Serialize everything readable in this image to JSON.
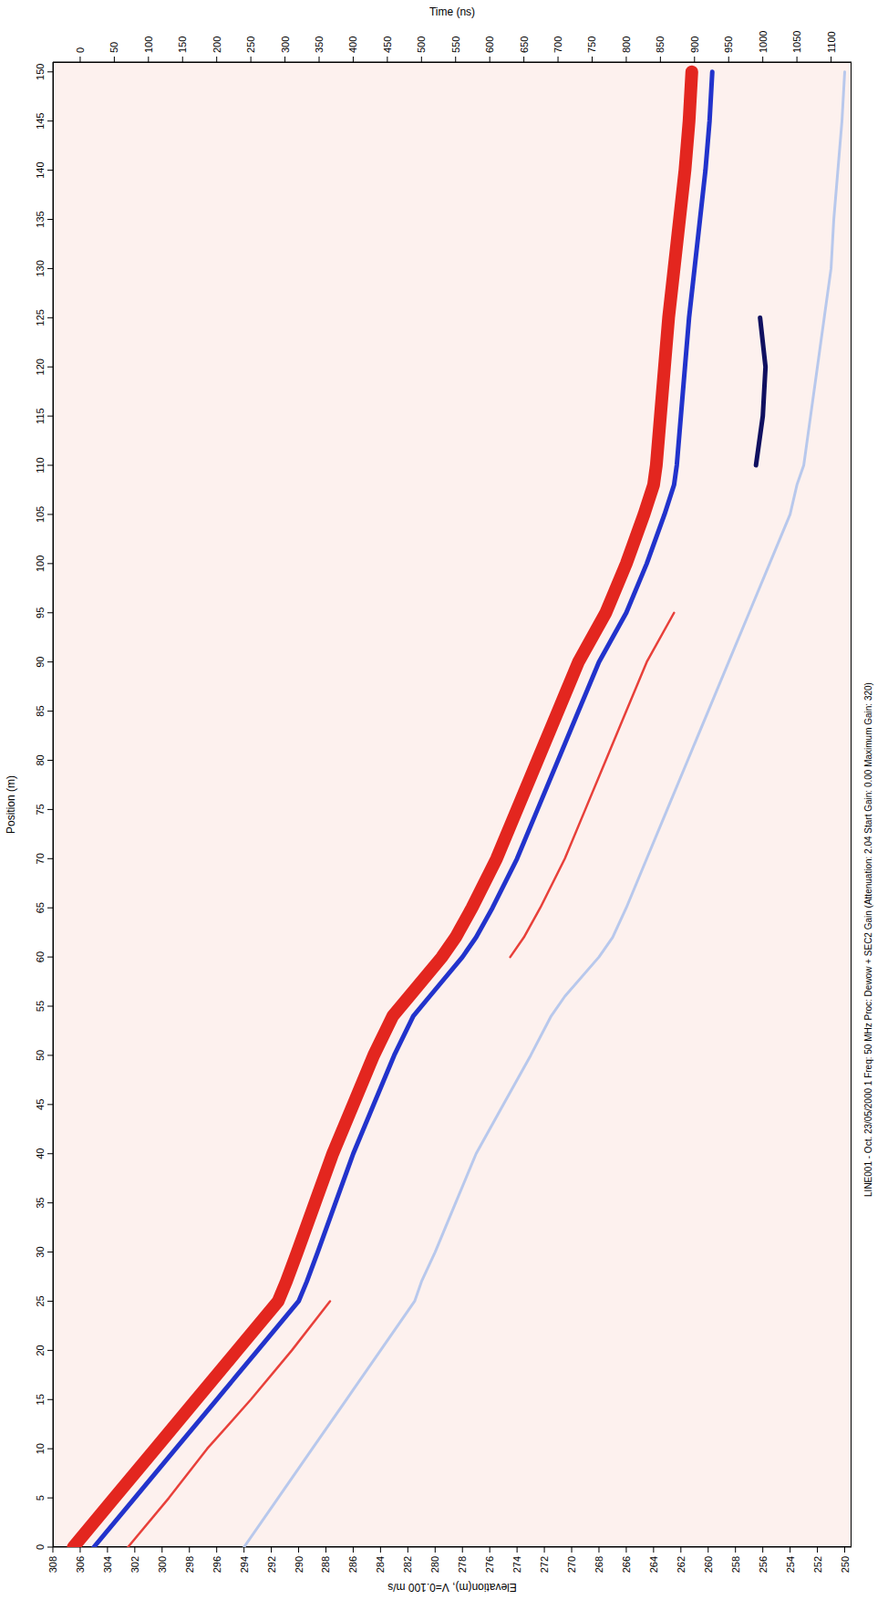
{
  "chart_data": {
    "type": "line",
    "x_label": "Position (m)",
    "y_label": "Elevation(m), V=0.100 m/s",
    "annotations": [
      "LINE001 - Oct. 23/05/2000 1 Freq: 50 MHz Proc: Dewow + SEC2 Gain (Attenuation: 2.04 Start Gain: 0.00 Maximum Gain: 320)"
    ],
    "x": [
      0,
      5,
      10,
      15,
      20,
      25,
      27,
      30,
      35,
      40,
      45,
      50,
      54,
      56,
      60,
      62,
      65,
      70,
      75,
      80,
      85,
      90,
      95,
      100,
      105,
      108,
      110,
      115,
      120,
      125,
      130,
      135,
      140,
      145,
      150
    ],
    "xlim": [
      0,
      151
    ],
    "xticks": [
      0,
      5,
      10,
      15,
      20,
      25,
      30,
      35,
      40,
      45,
      50,
      55,
      60,
      65,
      70,
      75,
      80,
      85,
      90,
      95,
      100,
      105,
      110,
      115,
      120,
      125,
      130,
      135,
      140,
      145,
      150
    ],
    "ylim": [
      308,
      249.5
    ],
    "yticks": [
      308,
      306,
      304,
      302,
      300,
      298,
      296,
      294,
      292,
      290,
      288,
      286,
      284,
      282,
      280,
      278,
      276,
      274,
      272,
      270,
      268,
      266,
      264,
      262,
      260,
      258,
      256,
      254,
      252,
      250
    ],
    "time_axis": {
      "label": "Time (ns)",
      "lim": [
        -40,
        1130
      ],
      "ticks": [
        0,
        50,
        100,
        150,
        200,
        250,
        300,
        350,
        400,
        450,
        500,
        550,
        600,
        650,
        700,
        750,
        800,
        850,
        900,
        950,
        1000,
        1050,
        1100
      ]
    },
    "grid": false,
    "tick_labels": true,
    "series": [
      {
        "color": "#b8c8ec",
        "values": [
          294,
          291.5,
          289,
          286.5,
          284,
          281.5,
          281,
          280,
          278.5,
          277,
          275,
          273,
          271.5,
          270.5,
          268,
          267,
          266,
          264.5,
          263,
          261.5,
          260,
          258.5,
          257,
          255.5,
          254,
          253.5,
          253,
          252.5,
          252,
          251.5,
          251,
          250.8,
          250.5,
          250.2,
          250
        ]
      },
      {
        "color": "#e8403a",
        "values": [
          302.5,
          299.5,
          296.7,
          293.5,
          290.5,
          287.7,
          null,
          null,
          null,
          null,
          null,
          null,
          null,
          null,
          null,
          null,
          null,
          null,
          null,
          null,
          null,
          null,
          null,
          null,
          null,
          null,
          null,
          null,
          null,
          null,
          null,
          null,
          null,
          null,
          null
        ]
      },
      {
        "color": "#e8403a",
        "values": [
          null,
          null,
          null,
          null,
          null,
          null,
          null,
          null,
          null,
          null,
          null,
          null,
          null,
          null,
          274.5,
          273.5,
          272.3,
          270.5,
          269,
          267.5,
          266,
          264.5,
          262.5,
          null,
          null,
          null,
          null,
          null,
          null,
          null,
          null,
          null,
          null,
          null,
          null
        ]
      },
      {
        "color": "#101060",
        "values": [
          null,
          null,
          null,
          null,
          null,
          null,
          null,
          null,
          null,
          null,
          null,
          null,
          null,
          null,
          null,
          null,
          null,
          null,
          null,
          null,
          null,
          null,
          null,
          null,
          null,
          null,
          256.5,
          256,
          255.8,
          256.2,
          null,
          null,
          null,
          null,
          null
        ]
      },
      {
        "color": "#2233cc",
        "values": [
          305,
          302,
          299,
          296,
          293,
          290,
          289.4,
          288.6,
          287.3,
          286,
          284.5,
          283,
          281.6,
          280.4,
          278,
          277,
          275.8,
          274,
          272.5,
          271,
          269.5,
          268,
          266,
          264.5,
          263.2,
          262.5,
          262.3,
          262,
          261.7,
          261.4,
          261,
          260.6,
          260.2,
          259.9,
          259.7
        ]
      },
      {
        "color": "#e3261f",
        "values": [
          306.5,
          303.5,
          300.5,
          297.5,
          294.5,
          291.5,
          290.9,
          290.1,
          288.8,
          287.5,
          286,
          284.5,
          283.1,
          281.9,
          279.5,
          278.5,
          277.3,
          275.5,
          274,
          272.5,
          271,
          269.5,
          267.5,
          266,
          264.7,
          264,
          263.8,
          263.5,
          263.2,
          262.9,
          262.5,
          262.1,
          261.7,
          261.4,
          261.2
        ]
      }
    ]
  }
}
